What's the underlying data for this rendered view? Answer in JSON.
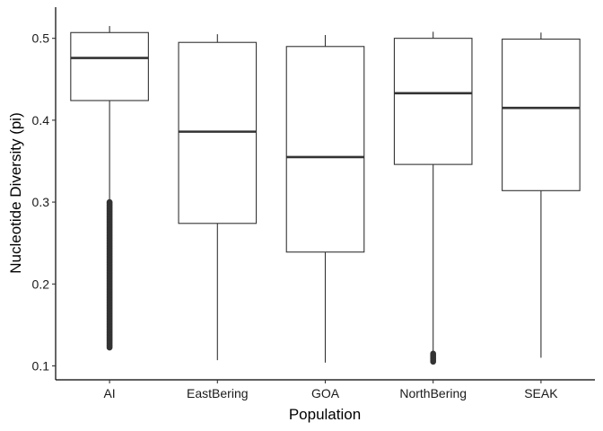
{
  "chart_data": {
    "type": "box",
    "title": "",
    "xlabel": "Population",
    "ylabel": "Nucleotide Diversity (pi)",
    "ylim": [
      0.083,
      0.538
    ],
    "yticks": [
      0.1,
      0.2,
      0.3,
      0.4,
      0.5
    ],
    "ytick_labels": [
      "0.1",
      "0.2",
      "0.3",
      "0.4",
      "0.5"
    ],
    "grid": false,
    "legend": "none",
    "categories": [
      "AI",
      "EastBering",
      "GOA",
      "NorthBering",
      "SEAK"
    ],
    "boxes": [
      {
        "category": "AI",
        "whisker_low": 0.3,
        "q1": 0.424,
        "median": 0.476,
        "q3": 0.507,
        "whisker_high": 0.515,
        "outliers_range": [
          0.122,
          0.3
        ]
      },
      {
        "category": "EastBering",
        "whisker_low": 0.107,
        "q1": 0.274,
        "median": 0.386,
        "q3": 0.495,
        "whisker_high": 0.505,
        "outliers_range": null
      },
      {
        "category": "GOA",
        "whisker_low": 0.104,
        "q1": 0.239,
        "median": 0.355,
        "q3": 0.49,
        "whisker_high": 0.504,
        "outliers_range": null
      },
      {
        "category": "NorthBering",
        "whisker_low": 0.115,
        "q1": 0.346,
        "median": 0.433,
        "q3": 0.5,
        "whisker_high": 0.508,
        "outliers_range": [
          0.104,
          0.115
        ]
      },
      {
        "category": "SEAK",
        "whisker_low": 0.11,
        "q1": 0.314,
        "median": 0.415,
        "q3": 0.499,
        "whisker_high": 0.507,
        "outliers_range": null
      }
    ],
    "colors": {
      "box_line": "#333333",
      "axis": "#000000",
      "background": "#ffffff"
    }
  }
}
